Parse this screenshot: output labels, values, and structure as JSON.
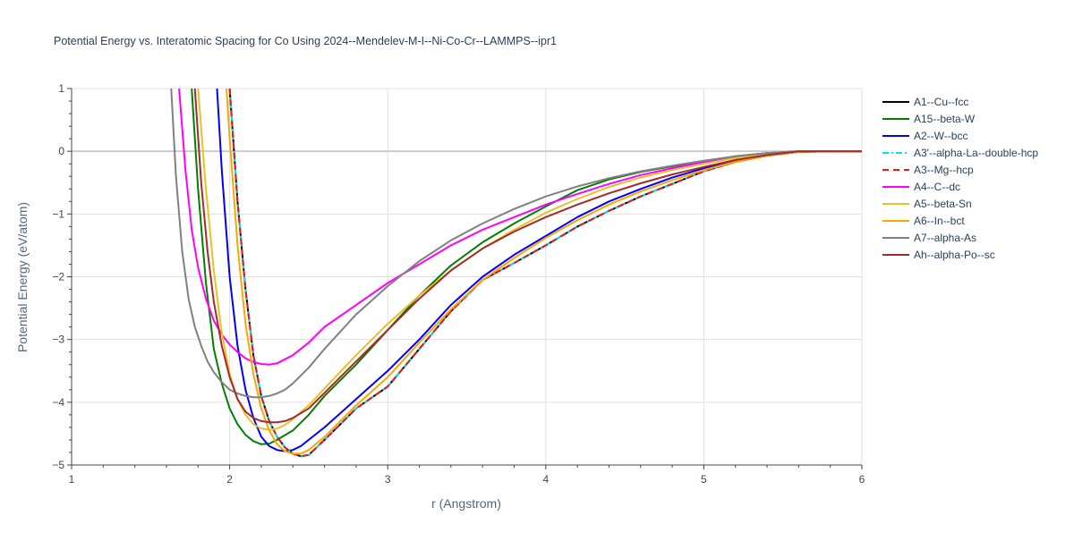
{
  "chart_data": {
    "type": "line",
    "title": "Potential Energy vs. Interatomic Spacing for Co Using 2024--Mendelev-M-I--Ni-Co-Cr--LAMMPS--ipr1",
    "xlabel": "r (Angstrom)",
    "ylabel": "Potential Energy (eV/atom)",
    "xlim": [
      1,
      6
    ],
    "ylim": [
      -5,
      1
    ],
    "xticks": [
      1,
      2,
      3,
      4,
      5,
      6
    ],
    "yticks": [
      1,
      0,
      -1,
      -2,
      -3,
      -4,
      -5
    ],
    "grid": true,
    "legend_position": "right",
    "series": [
      {
        "name": "A1--Cu--fcc",
        "color": "#000000",
        "dash": "solid",
        "x": [
          2.0,
          2.05,
          2.1,
          2.15,
          2.2,
          2.25,
          2.3,
          2.35,
          2.4,
          2.45,
          2.5,
          2.6,
          2.7,
          2.8,
          3.0,
          3.2,
          3.4,
          3.6,
          3.8,
          4.0,
          4.2,
          4.4,
          4.6,
          4.8,
          5.0,
          5.2,
          5.4,
          5.6,
          5.8,
          6.0
        ],
        "y": [
          1.0,
          -0.8,
          -2.2,
          -3.25,
          -3.9,
          -4.3,
          -4.55,
          -4.72,
          -4.82,
          -4.86,
          -4.84,
          -4.6,
          -4.35,
          -4.1,
          -3.75,
          -3.15,
          -2.55,
          -2.05,
          -1.78,
          -1.5,
          -1.2,
          -0.95,
          -0.72,
          -0.52,
          -0.32,
          -0.17,
          -0.07,
          -0.01,
          0.0,
          0.0
        ]
      },
      {
        "name": "A15--beta-W",
        "color": "#008000",
        "dash": "solid",
        "x": [
          1.76,
          1.8,
          1.85,
          1.9,
          1.95,
          2.0,
          2.05,
          2.1,
          2.15,
          2.2,
          2.25,
          2.3,
          2.4,
          2.5,
          2.6,
          2.8,
          3.0,
          3.2,
          3.4,
          3.6,
          3.8,
          4.0,
          4.2,
          4.4,
          4.6,
          4.8,
          5.0,
          5.2,
          5.4,
          5.6,
          5.8,
          6.0
        ],
        "y": [
          1.0,
          -0.6,
          -2.1,
          -3.15,
          -3.7,
          -4.1,
          -4.35,
          -4.52,
          -4.62,
          -4.67,
          -4.66,
          -4.6,
          -4.45,
          -4.2,
          -3.9,
          -3.4,
          -2.85,
          -2.3,
          -1.82,
          -1.45,
          -1.15,
          -0.88,
          -0.62,
          -0.45,
          -0.33,
          -0.24,
          -0.16,
          -0.08,
          -0.03,
          0.0,
          0.0,
          0.0
        ]
      },
      {
        "name": "A2--W--bcc",
        "color": "#0000ff",
        "dash": "solid",
        "x": [
          1.92,
          1.95,
          2.0,
          2.05,
          2.1,
          2.15,
          2.2,
          2.25,
          2.3,
          2.35,
          2.4,
          2.45,
          2.5,
          2.6,
          2.8,
          3.0,
          3.2,
          3.4,
          3.6,
          3.8,
          4.0,
          4.2,
          4.4,
          4.6,
          4.8,
          5.0,
          5.2,
          5.4,
          5.6,
          5.8,
          6.0
        ],
        "y": [
          1.0,
          -0.3,
          -2.0,
          -3.1,
          -3.8,
          -4.25,
          -4.55,
          -4.7,
          -4.76,
          -4.78,
          -4.76,
          -4.7,
          -4.6,
          -4.4,
          -3.95,
          -3.5,
          -3.0,
          -2.45,
          -2.0,
          -1.65,
          -1.35,
          -1.05,
          -0.8,
          -0.6,
          -0.42,
          -0.27,
          -0.14,
          -0.05,
          0.0,
          0.0,
          0.0
        ]
      },
      {
        "name": "A3'--alpha-La--double-hcp",
        "color": "#00e5ee",
        "dash": "dashdot",
        "x": [
          2.0,
          2.05,
          2.1,
          2.15,
          2.2,
          2.25,
          2.3,
          2.35,
          2.4,
          2.45,
          2.5,
          2.6,
          2.7,
          2.8,
          3.0,
          3.2,
          3.4,
          3.6,
          3.8,
          4.0,
          4.2,
          4.4,
          4.6,
          4.8,
          5.0,
          5.2,
          5.4,
          5.6,
          5.8,
          6.0
        ],
        "y": [
          1.0,
          -0.8,
          -2.2,
          -3.25,
          -3.9,
          -4.3,
          -4.55,
          -4.72,
          -4.82,
          -4.86,
          -4.84,
          -4.6,
          -4.35,
          -4.1,
          -3.75,
          -3.15,
          -2.55,
          -2.05,
          -1.78,
          -1.5,
          -1.2,
          -0.95,
          -0.72,
          -0.52,
          -0.32,
          -0.17,
          -0.07,
          -0.01,
          0.0,
          0.0
        ]
      },
      {
        "name": "A3--Mg--hcp",
        "color": "#e41a1c",
        "dash": "dash",
        "x": [
          2.0,
          2.05,
          2.1,
          2.15,
          2.2,
          2.25,
          2.3,
          2.35,
          2.4,
          2.45,
          2.5,
          2.6,
          2.7,
          2.8,
          3.0,
          3.2,
          3.4,
          3.6,
          3.8,
          4.0,
          4.2,
          4.4,
          4.6,
          4.8,
          5.0,
          5.2,
          5.4,
          5.6,
          5.8,
          6.0
        ],
        "y": [
          1.0,
          -0.8,
          -2.2,
          -3.25,
          -3.9,
          -4.3,
          -4.55,
          -4.72,
          -4.82,
          -4.86,
          -4.84,
          -4.6,
          -4.35,
          -4.1,
          -3.75,
          -3.15,
          -2.55,
          -2.05,
          -1.78,
          -1.5,
          -1.2,
          -0.95,
          -0.72,
          -0.52,
          -0.32,
          -0.17,
          -0.07,
          -0.01,
          0.0,
          0.0
        ]
      },
      {
        "name": "A4--C--dc",
        "color": "#ff00ff",
        "dash": "solid",
        "x": [
          1.68,
          1.72,
          1.76,
          1.8,
          1.85,
          1.9,
          1.95,
          2.0,
          2.05,
          2.1,
          2.15,
          2.2,
          2.25,
          2.3,
          2.4,
          2.5,
          2.6,
          2.8,
          3.0,
          3.2,
          3.4,
          3.6,
          3.8,
          4.0,
          4.2,
          4.4,
          4.6,
          4.8,
          5.0,
          5.2,
          5.4,
          5.6,
          5.8,
          6.0
        ],
        "y": [
          1.0,
          -0.3,
          -1.25,
          -1.85,
          -2.35,
          -2.7,
          -2.92,
          -3.08,
          -3.2,
          -3.3,
          -3.36,
          -3.39,
          -3.4,
          -3.38,
          -3.25,
          -3.05,
          -2.8,
          -2.45,
          -2.1,
          -1.8,
          -1.5,
          -1.25,
          -1.05,
          -0.85,
          -0.68,
          -0.52,
          -0.38,
          -0.27,
          -0.17,
          -0.08,
          -0.03,
          0.0,
          0.0,
          0.0
        ]
      },
      {
        "name": "A5--beta-Sn",
        "color": "#e6c229",
        "dash": "solid",
        "x": [
          1.8,
          1.85,
          1.9,
          1.95,
          2.0,
          2.05,
          2.1,
          2.15,
          2.2,
          2.25,
          2.3,
          2.35,
          2.4,
          2.5,
          2.6,
          2.8,
          3.0,
          3.2,
          3.4,
          3.6,
          3.8,
          4.0,
          4.2,
          4.4,
          4.6,
          4.8,
          5.0,
          5.2,
          5.4,
          5.6,
          5.8,
          6.0
        ],
        "y": [
          1.0,
          -0.6,
          -1.9,
          -2.9,
          -3.55,
          -3.95,
          -4.2,
          -4.35,
          -4.42,
          -4.44,
          -4.42,
          -4.36,
          -4.27,
          -4.05,
          -3.78,
          -3.25,
          -2.75,
          -2.3,
          -1.9,
          -1.55,
          -1.25,
          -0.98,
          -0.76,
          -0.57,
          -0.42,
          -0.3,
          -0.2,
          -0.11,
          -0.04,
          0.0,
          0.0,
          0.0
        ]
      },
      {
        "name": "A6--In--bct",
        "color": "#ffa500",
        "dash": "solid",
        "x": [
          1.98,
          2.0,
          2.05,
          2.1,
          2.15,
          2.2,
          2.25,
          2.3,
          2.35,
          2.4,
          2.45,
          2.5,
          2.6,
          2.8,
          3.0,
          3.2,
          3.4,
          3.6,
          3.8,
          4.0,
          4.2,
          4.4,
          4.6,
          4.8,
          5.0,
          5.2,
          5.4,
          5.6,
          5.8,
          6.0
        ],
        "y": [
          1.0,
          0.2,
          -1.5,
          -2.75,
          -3.55,
          -4.1,
          -4.45,
          -4.67,
          -4.78,
          -4.82,
          -4.82,
          -4.76,
          -4.55,
          -4.05,
          -3.6,
          -3.05,
          -2.52,
          -2.05,
          -1.7,
          -1.38,
          -1.1,
          -0.85,
          -0.64,
          -0.46,
          -0.3,
          -0.17,
          -0.07,
          -0.01,
          0.0,
          0.0
        ]
      },
      {
        "name": "A7--alpha-As",
        "color": "#808080",
        "dash": "solid",
        "x": [
          1.63,
          1.66,
          1.7,
          1.74,
          1.78,
          1.82,
          1.86,
          1.9,
          1.95,
          2.0,
          2.05,
          2.1,
          2.15,
          2.2,
          2.25,
          2.3,
          2.35,
          2.4,
          2.5,
          2.6,
          2.8,
          3.0,
          3.2,
          3.4,
          3.6,
          3.8,
          4.0,
          4.2,
          4.4,
          4.6,
          4.8,
          5.0,
          5.2,
          5.4,
          5.6,
          5.8,
          6.0
        ],
        "y": [
          1.0,
          -0.4,
          -1.6,
          -2.35,
          -2.8,
          -3.1,
          -3.35,
          -3.52,
          -3.68,
          -3.8,
          -3.86,
          -3.9,
          -3.92,
          -3.92,
          -3.9,
          -3.86,
          -3.8,
          -3.7,
          -3.45,
          -3.15,
          -2.6,
          -2.15,
          -1.75,
          -1.42,
          -1.15,
          -0.92,
          -0.72,
          -0.56,
          -0.43,
          -0.32,
          -0.23,
          -0.15,
          -0.08,
          -0.03,
          0.0,
          0.0,
          0.0
        ]
      },
      {
        "name": "Ah--alpha-Po--sc",
        "color": "#a52a2a",
        "dash": "solid",
        "x": [
          1.78,
          1.82,
          1.86,
          1.9,
          1.95,
          2.0,
          2.05,
          2.1,
          2.15,
          2.2,
          2.25,
          2.3,
          2.35,
          2.4,
          2.5,
          2.6,
          2.8,
          3.0,
          3.2,
          3.4,
          3.6,
          3.8,
          4.0,
          4.2,
          4.4,
          4.6,
          4.8,
          5.0,
          5.2,
          5.4,
          5.6,
          5.8,
          6.0
        ],
        "y": [
          1.0,
          -0.5,
          -1.6,
          -2.4,
          -3.1,
          -3.6,
          -3.95,
          -4.15,
          -4.25,
          -4.3,
          -4.32,
          -4.32,
          -4.3,
          -4.25,
          -4.1,
          -3.85,
          -3.35,
          -2.85,
          -2.35,
          -1.9,
          -1.55,
          -1.28,
          -1.05,
          -0.85,
          -0.67,
          -0.51,
          -0.37,
          -0.25,
          -0.14,
          -0.06,
          0.0,
          0.0,
          0.0
        ]
      }
    ]
  }
}
